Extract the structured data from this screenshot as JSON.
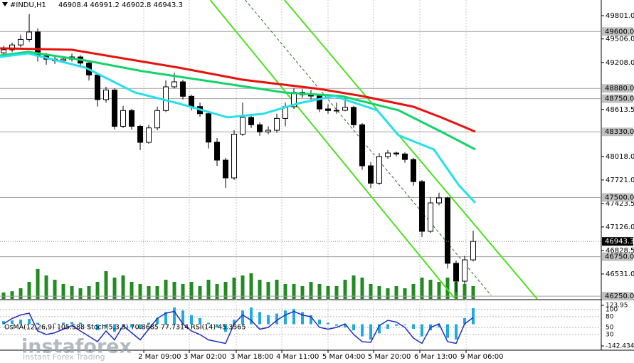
{
  "chart_data": [
    {
      "type": "candlestick",
      "title": "#INDU,H1",
      "ohlc_text": "46908.4 46991.2 46902.8 46943.3",
      "watermark": {
        "brand": "instaforex",
        "tagline": "Instant Forex Trading"
      },
      "xlim": [
        -0.42,
        70
      ],
      "ylim": [
        46215,
        49999
      ],
      "xticks": [
        {
          "value": 16.42,
          "label": "2 Mar 09:00"
        },
        {
          "value": 21.75,
          "label": "3 Mar 02:00"
        },
        {
          "value": 27.25,
          "label": "3 Mar 18:00"
        },
        {
          "value": 32.58,
          "label": "4 Mar 11:00"
        },
        {
          "value": 38,
          "label": "5 Mar 04:00"
        },
        {
          "value": 43.33,
          "label": "5 Mar 20:00"
        },
        {
          "value": 48.75,
          "label": "6 Mar 13:00"
        },
        {
          "value": 54.17,
          "label": "9 Mar 06:00"
        }
      ],
      "yticks": [
        {
          "value": 49801,
          "label": "49801.0"
        },
        {
          "value": 49506,
          "label": "49506.0"
        },
        {
          "value": 49208,
          "label": "49208.0"
        },
        48613.5,
        {
          "value": 48018,
          "label": "48018.0"
        },
        {
          "value": 47721,
          "label": "47721.0"
        },
        47423.5,
        {
          "value": 47126,
          "label": "47126.0"
        },
        46828.5,
        {
          "value": 46531,
          "label": "46531.0"
        }
      ],
      "levels": [
        {
          "value": 49600,
          "label": "49600.0"
        },
        {
          "value": 48880,
          "label": "48880.0"
        },
        {
          "value": 48750,
          "label": "48750.0"
        },
        {
          "value": 48330,
          "label": "48330.0"
        },
        {
          "value": 47500,
          "label": "47500.0"
        },
        {
          "value": 46750,
          "label": "46750.0"
        },
        {
          "value": 46250,
          "label": "46250.0"
        }
      ],
      "current_price": 46943.3,
      "candles": [
        [
          49330,
          49420,
          49300,
          49369
        ],
        [
          49369,
          49460,
          49340,
          49430
        ],
        [
          49430,
          49560,
          49400,
          49500
        ],
        [
          49500,
          49820,
          49470,
          49594
        ],
        [
          49594,
          49640,
          49220,
          49290
        ],
        [
          49290,
          49330,
          49180,
          49250
        ],
        [
          49250,
          49290,
          49190,
          49230
        ],
        [
          49230,
          49280,
          49200,
          49250
        ],
        [
          49250,
          49320,
          49220,
          49278
        ],
        [
          49278,
          49300,
          49160,
          49200
        ],
        [
          49200,
          49230,
          48980,
          49050
        ],
        [
          49050,
          49080,
          48650,
          48738
        ],
        [
          48738,
          48900,
          48700,
          48860
        ],
        [
          48860,
          48880,
          48360,
          48400
        ],
        [
          48400,
          48660,
          48380,
          48600
        ],
        [
          48600,
          48620,
          48360,
          48400
        ],
        [
          48400,
          48420,
          48100,
          48197
        ],
        [
          48197,
          48420,
          48180,
          48380
        ],
        [
          48380,
          48650,
          48350,
          48600
        ],
        [
          48600,
          48980,
          48580,
          48900
        ],
        [
          48900,
          49080,
          48880,
          48963
        ],
        [
          48963,
          48990,
          48740,
          48780
        ],
        [
          48780,
          48800,
          48600,
          48650
        ],
        [
          48650,
          48700,
          48520,
          48560
        ],
        [
          48560,
          48580,
          48120,
          48200
        ],
        [
          48200,
          48250,
          47900,
          47972
        ],
        [
          47972,
          48000,
          47620,
          47747
        ],
        [
          47747,
          48350,
          47720,
          48300
        ],
        [
          48300,
          48700,
          48280,
          48513
        ],
        [
          48513,
          48540,
          48380,
          48420
        ],
        [
          48420,
          48450,
          48280,
          48330
        ],
        [
          48330,
          48400,
          48300,
          48350
        ],
        [
          48350,
          48560,
          48320,
          48500
        ],
        [
          48500,
          48700,
          48400,
          48648
        ],
        [
          48648,
          48880,
          48620,
          48830
        ],
        [
          48830,
          48870,
          48760,
          48800
        ],
        [
          48800,
          48860,
          48740,
          48783
        ],
        [
          48783,
          48800,
          48580,
          48620
        ],
        [
          48620,
          48680,
          48560,
          48600
        ],
        [
          48600,
          48700,
          48560,
          48603
        ],
        [
          48603,
          48760,
          48590,
          48640
        ],
        [
          48640,
          48660,
          48380,
          48420
        ],
        [
          48420,
          48440,
          47850,
          47900
        ],
        [
          47900,
          47950,
          47620,
          47680
        ],
        [
          47680,
          48060,
          47660,
          48017
        ],
        [
          48017,
          48100,
          47990,
          48062
        ],
        [
          48062,
          48080,
          48020,
          48050
        ],
        [
          48050,
          48070,
          47940,
          47980
        ],
        [
          47980,
          48000,
          47650,
          47700
        ],
        [
          47700,
          47720,
          47000,
          47071
        ],
        [
          47071,
          47500,
          47050,
          47431
        ],
        [
          47431,
          47560,
          47400,
          47494
        ],
        [
          47494,
          47510,
          46600,
          46666
        ],
        [
          46666,
          46700,
          46300,
          46440
        ],
        [
          46440,
          46760,
          46400,
          46710
        ],
        [
          46710,
          47080,
          46690,
          46943.3
        ]
      ],
      "volumes": [
        15,
        18,
        25,
        40,
        70,
        55,
        45,
        35,
        30,
        25,
        30,
        40,
        65,
        50,
        55,
        40,
        35,
        30,
        30,
        45,
        40,
        35,
        40,
        30,
        45,
        35,
        40,
        50,
        55,
        60,
        45,
        40,
        45,
        35,
        35,
        30,
        40,
        35,
        30,
        30,
        45,
        55,
        50,
        35,
        30,
        25,
        30,
        25,
        35,
        50,
        45,
        40,
        50,
        40,
        35,
        30
      ],
      "volume_lim": [
        0,
        100
      ],
      "volume_color": "#228b22",
      "series": [
        {
          "color": "#e8120c",
          "x": [
            -0.4,
            8,
            13,
            20.5,
            28,
            37,
            42,
            48,
            51.25,
            55.25
          ],
          "values": [
            49387,
            49369,
            49278,
            49143,
            48990,
            48873,
            48783,
            48648,
            48513,
            48332
          ]
        },
        {
          "color": "#13d36a",
          "x": [
            -0.4,
            2.9,
            9.6,
            16.25,
            24.6,
            32.9,
            39.6,
            46.25,
            51.25,
            55.25
          ],
          "values": [
            49296,
            49342,
            49233,
            49098,
            48963,
            48828,
            48783,
            48603,
            48332,
            48107
          ]
        },
        {
          "color": "#24e0ec",
          "x": [
            -0.4,
            2.9,
            9.6,
            15.4,
            20.4,
            26.25,
            30.4,
            34.6,
            38.75,
            43.75,
            46.25,
            50.4,
            53.3,
            55.25
          ],
          "values": [
            49278,
            49323,
            49143,
            48828,
            48693,
            48513,
            48558,
            48693,
            48783,
            48603,
            48287,
            48107,
            47657,
            47431
          ]
        }
      ],
      "trendlines": [
        {
          "color": "#4ee01e",
          "x": [
            24.2,
            52.9
          ],
          "values": [
            49999,
            46215
          ]
        },
        {
          "color": "#2f6b2f",
          "x": [
            28.3,
            57.1
          ],
          "values": [
            49999,
            46260
          ]
        },
        {
          "color": "#4ee01e",
          "x": [
            32.9,
            62.5
          ],
          "values": [
            49999,
            46215
          ]
        }
      ]
    },
    {
      "type": "osma",
      "title": "OsMA(12,26,9) 105.588  Stoch(5,3,3) 70.8685 77.7314  RSI(14) 45.3565",
      "ylim": [
        -142.434,
        123.95
      ],
      "yticks": [
        123.95,
        -142.434
      ],
      "y2lim": [
        0,
        100
      ],
      "y2ticks": [
        100,
        80,
        50,
        30
      ],
      "color": "#1fa9e0",
      "line_color": "#1f2fc0",
      "values": [
        20,
        25,
        30,
        35,
        10,
        0,
        5,
        10,
        15,
        10,
        -10,
        -40,
        -20,
        -50,
        -10,
        -20,
        -30,
        10,
        40,
        80,
        110,
        90,
        60,
        40,
        10,
        -20,
        -50,
        30,
        90,
        110,
        80,
        60,
        70,
        90,
        100,
        80,
        60,
        30,
        10,
        -10,
        -20,
        -40,
        -80,
        -100,
        -60,
        -30,
        -10,
        -5,
        -30,
        -80,
        -40,
        -20,
        -90,
        -100,
        40,
        105.588
      ],
      "stoch": [
        60,
        75,
        85,
        90,
        40,
        30,
        35,
        45,
        55,
        40,
        25,
        10,
        40,
        15,
        55,
        35,
        15,
        45,
        75,
        90,
        95,
        60,
        40,
        30,
        15,
        10,
        5,
        60,
        85,
        70,
        45,
        50,
        70,
        85,
        95,
        85,
        80,
        50,
        45,
        50,
        60,
        30,
        10,
        8,
        55,
        70,
        65,
        50,
        20,
        5,
        50,
        60,
        10,
        5,
        60,
        77.7314
      ]
    }
  ]
}
